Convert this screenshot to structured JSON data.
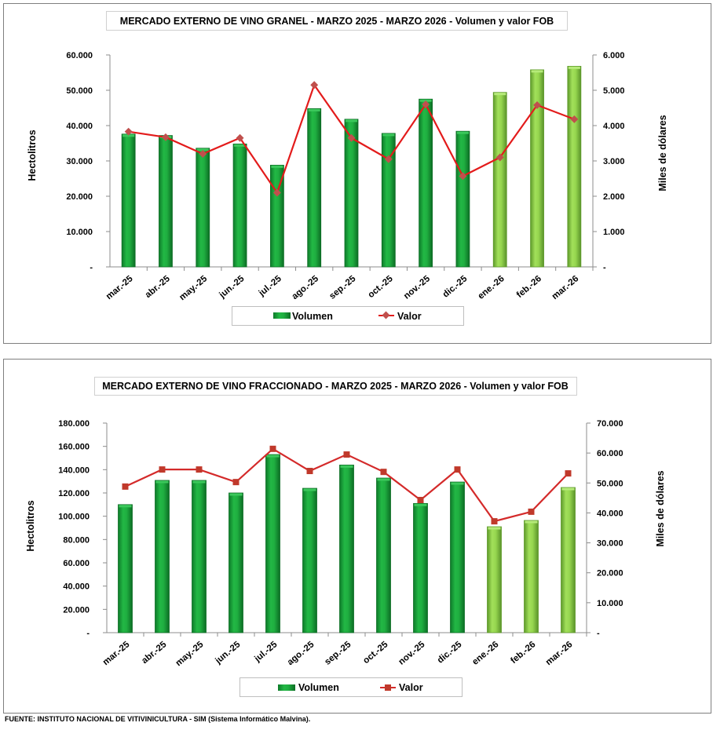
{
  "chart_data": [
    {
      "type": "bar+line",
      "title": "MERCADO EXTERNO DE VINO GRANEL - MARZO 2025 - MARZO 2026 - Volumen y valor FOB",
      "ylabel": "Hectolitros",
      "y2label": "Miles de dólares",
      "categories": [
        "mar.-25",
        "abr.-25",
        "may.-25",
        "jun.-25",
        "jul.-25",
        "ago.-25",
        "sep.-25",
        "oct.-25",
        "nov.-25",
        "dic.-25",
        "ene.-26",
        "feb.-26",
        "mar.-26"
      ],
      "ylim": [
        0,
        60000
      ],
      "y2lim": [
        0,
        6000
      ],
      "yticks": [
        "-",
        "10.000",
        "20.000",
        "30.000",
        "40.000",
        "50.000",
        "60.000"
      ],
      "y2ticks": [
        "-",
        "1.000",
        "2.000",
        "3.000",
        "4.000",
        "5.000",
        "6.000"
      ],
      "series": [
        {
          "name": "Volumen",
          "type": "bar",
          "axis": "left",
          "values": [
            37600,
            37200,
            33600,
            34800,
            28800,
            44800,
            41800,
            37800,
            47500,
            38400,
            49400,
            55800,
            56800
          ]
        },
        {
          "name": "Valor",
          "type": "line",
          "axis": "right",
          "marker": "diamond",
          "values": [
            3830,
            3670,
            3200,
            3650,
            2100,
            5150,
            3650,
            3050,
            4600,
            2570,
            3100,
            4580,
            4180
          ]
        }
      ],
      "highlight_from_index": 10,
      "legend": "bottom",
      "grid": false
    },
    {
      "type": "bar+line",
      "title": "MERCADO EXTERNO DE VINO FRACCIONADO - MARZO 2025 - MARZO 2026 - Volumen y valor FOB",
      "ylabel": "Hectolitros",
      "y2label": "Miles de dólares",
      "categories": [
        "mar.-25",
        "abr.-25",
        "may.-25",
        "jun.-25",
        "jul.-25",
        "ago.-25",
        "sep.-25",
        "oct.-25",
        "nov.-25",
        "dic.-25",
        "ene.-26",
        "feb.-26",
        "mar.-26"
      ],
      "ylim": [
        0,
        180000
      ],
      "y2lim": [
        0,
        70000
      ],
      "yticks": [
        "-",
        "20.000",
        "40.000",
        "60.000",
        "80.000",
        "100.000",
        "120.000",
        "140.000",
        "160.000",
        "180.000"
      ],
      "y2ticks": [
        "-",
        "10.000",
        "20.000",
        "30.000",
        "40.000",
        "50.000",
        "60.000",
        "70.000"
      ],
      "series": [
        {
          "name": "Volumen",
          "type": "bar",
          "axis": "left",
          "values": [
            110000,
            130800,
            130800,
            120000,
            153000,
            124000,
            144000,
            132800,
            111000,
            129400,
            91000,
            96400,
            124700
          ]
        },
        {
          "name": "Valor",
          "type": "line",
          "axis": "right",
          "marker": "square",
          "values": [
            48800,
            54500,
            54500,
            50300,
            61400,
            54000,
            59500,
            53700,
            44300,
            54500,
            37200,
            40400,
            53200
          ]
        }
      ],
      "highlight_from_index": 10,
      "legend": "bottom",
      "grid": false
    }
  ],
  "colors": {
    "bar_dark": "#19a33b",
    "bar_dark_edge": "#0d6e25",
    "bar_light": "#8fd14b",
    "bar_light_edge": "#5e9a2a",
    "line1": "#e31b1b",
    "marker1": "#c0504d",
    "line2": "#d42a2a",
    "marker2": "#c0392b"
  },
  "footer": "FUENTE: INSTITUTO NACIONAL DE VITIVINICULTURA - SIM (Sistema Informático Malvina)."
}
